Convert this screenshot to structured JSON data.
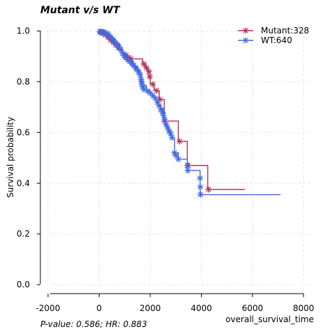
{
  "chart_data": {
    "type": "line",
    "title": "Mutant v/s WT",
    "xlabel": "overall_survival_time",
    "ylabel": "Survival probability",
    "footnote": "P-value: 0.586; HR: 0.883",
    "xlim": [
      -2300,
      8400
    ],
    "ylim": [
      -0.03,
      1.04
    ],
    "xticks": [
      -2000,
      0,
      2000,
      4000,
      6000,
      8000
    ],
    "yticks": [
      0.0,
      0.2,
      0.4,
      0.6,
      0.8,
      1.0
    ],
    "ytick_labels": [
      "0.0",
      "0.2",
      "0.4",
      "0.6",
      "0.8",
      "1.0"
    ],
    "grid": true,
    "legend_position": "top-right",
    "series": [
      {
        "name": "Mutant:328",
        "color": "#b5315a",
        "steps": [
          [
            0,
            1.0
          ],
          [
            100,
            0.99
          ],
          [
            200,
            0.985
          ],
          [
            300,
            0.975
          ],
          [
            400,
            0.965
          ],
          [
            500,
            0.955
          ],
          [
            600,
            0.945
          ],
          [
            700,
            0.935
          ],
          [
            800,
            0.925
          ],
          [
            900,
            0.915
          ],
          [
            1000,
            0.905
          ],
          [
            1100,
            0.895
          ],
          [
            1200,
            0.89
          ],
          [
            1700,
            0.87
          ],
          [
            1800,
            0.855
          ],
          [
            1900,
            0.84
          ],
          [
            1950,
            0.82
          ],
          [
            2000,
            0.79
          ],
          [
            2150,
            0.765
          ],
          [
            2350,
            0.73
          ],
          [
            2550,
            0.645
          ],
          [
            3100,
            0.565
          ],
          [
            3450,
            0.47
          ],
          [
            4250,
            0.375
          ],
          [
            5700,
            0.375
          ]
        ],
        "censor": [
          [
            50,
            0.995
          ],
          [
            150,
            0.99
          ],
          [
            250,
            0.985
          ],
          [
            350,
            0.975
          ],
          [
            450,
            0.965
          ],
          [
            550,
            0.955
          ],
          [
            650,
            0.945
          ],
          [
            750,
            0.935
          ],
          [
            1050,
            0.905
          ],
          [
            1150,
            0.895
          ],
          [
            1250,
            0.89
          ],
          [
            1750,
            0.87
          ],
          [
            1850,
            0.855
          ],
          [
            1950,
            0.84
          ],
          [
            1980,
            0.82
          ],
          [
            2100,
            0.79
          ],
          [
            2250,
            0.765
          ],
          [
            2380,
            0.73
          ],
          [
            2560,
            0.645
          ],
          [
            3150,
            0.565
          ],
          [
            3480,
            0.47
          ],
          [
            4280,
            0.375
          ]
        ]
      },
      {
        "name": "WT:640",
        "color": "#4169e1",
        "steps": [
          [
            0,
            1.0
          ],
          [
            200,
            0.995
          ],
          [
            300,
            0.99
          ],
          [
            400,
            0.98
          ],
          [
            500,
            0.97
          ],
          [
            600,
            0.96
          ],
          [
            700,
            0.95
          ],
          [
            800,
            0.935
          ],
          [
            900,
            0.915
          ],
          [
            1000,
            0.9
          ],
          [
            1100,
            0.89
          ],
          [
            1200,
            0.88
          ],
          [
            1300,
            0.87
          ],
          [
            1400,
            0.86
          ],
          [
            1500,
            0.845
          ],
          [
            1600,
            0.83
          ],
          [
            1650,
            0.805
          ],
          [
            1700,
            0.785
          ],
          [
            1850,
            0.765
          ],
          [
            2000,
            0.755
          ],
          [
            2100,
            0.74
          ],
          [
            2200,
            0.725
          ],
          [
            2300,
            0.71
          ],
          [
            2400,
            0.695
          ],
          [
            2500,
            0.67
          ],
          [
            2550,
            0.645
          ],
          [
            2600,
            0.625
          ],
          [
            2700,
            0.61
          ],
          [
            2800,
            0.59
          ],
          [
            2850,
            0.575
          ],
          [
            2950,
            0.52
          ],
          [
            3100,
            0.495
          ],
          [
            3450,
            0.45
          ],
          [
            3950,
            0.355
          ],
          [
            7100,
            0.355
          ]
        ],
        "censor": [
          [
            30,
            0.998
          ],
          [
            80,
            0.997
          ],
          [
            130,
            0.996
          ],
          [
            180,
            0.995
          ],
          [
            250,
            0.993
          ],
          [
            320,
            0.99
          ],
          [
            380,
            0.985
          ],
          [
            450,
            0.975
          ],
          [
            520,
            0.968
          ],
          [
            580,
            0.96
          ],
          [
            650,
            0.952
          ],
          [
            720,
            0.945
          ],
          [
            780,
            0.935
          ],
          [
            850,
            0.925
          ],
          [
            920,
            0.912
          ],
          [
            980,
            0.902
          ],
          [
            1050,
            0.895
          ],
          [
            1120,
            0.888
          ],
          [
            1200,
            0.88
          ],
          [
            1280,
            0.872
          ],
          [
            1350,
            0.865
          ],
          [
            1420,
            0.855
          ],
          [
            1480,
            0.848
          ],
          [
            1550,
            0.838
          ],
          [
            1600,
            0.828
          ],
          [
            1640,
            0.81
          ],
          [
            1660,
            0.8
          ],
          [
            1680,
            0.79
          ],
          [
            1700,
            0.78
          ],
          [
            1750,
            0.77
          ],
          [
            1900,
            0.763
          ],
          [
            2000,
            0.755
          ],
          [
            2100,
            0.745
          ],
          [
            2200,
            0.735
          ],
          [
            2280,
            0.718
          ],
          [
            2350,
            0.705
          ],
          [
            2420,
            0.69
          ],
          [
            2480,
            0.68
          ],
          [
            2520,
            0.668
          ],
          [
            2560,
            0.652
          ],
          [
            2620,
            0.632
          ],
          [
            2680,
            0.618
          ],
          [
            2740,
            0.605
          ],
          [
            2800,
            0.595
          ],
          [
            2850,
            0.58
          ],
          [
            2950,
            0.52
          ],
          [
            3000,
            0.51
          ],
          [
            3100,
            0.495
          ],
          [
            3450,
            0.47
          ],
          [
            3470,
            0.45
          ],
          [
            3950,
            0.42
          ],
          [
            3960,
            0.385
          ],
          [
            3970,
            0.355
          ]
        ]
      }
    ]
  }
}
